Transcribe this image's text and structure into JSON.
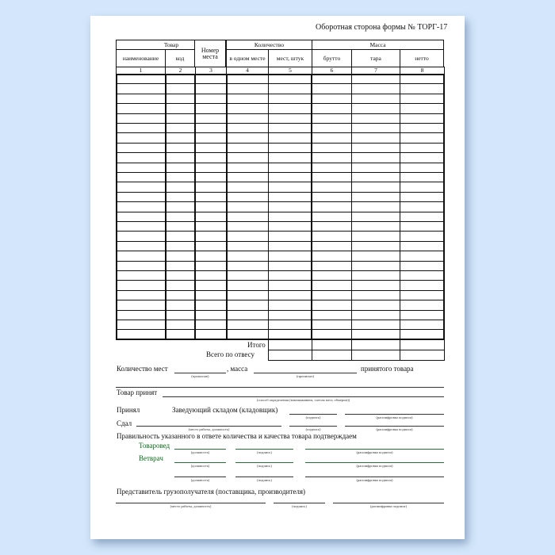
{
  "title": "Оборотная сторона формы № ТОРГ-17",
  "table": {
    "group_headers": {
      "goods": "Товар",
      "place_number": "Номер места",
      "quantity": "Количество",
      "mass": "Масса"
    },
    "sub_headers": {
      "name": "наименование",
      "code": "код",
      "per_place": "в одном месте",
      "places_pieces": "мест, штук",
      "gross": "брутто",
      "tare": "тара",
      "net": "нетто"
    },
    "column_numbers": [
      "1",
      "2",
      "3",
      "4",
      "5",
      "6",
      "7",
      "8"
    ],
    "total_label": "Итого",
    "total_weight_label": "Всего по отвесу"
  },
  "form": {
    "places_count_label": "Количество мест",
    "mass_label": ", масса",
    "accepted_goods_label": "принятого товара",
    "in_words": "(прописью)",
    "goods_accepted_label": "Товар принят",
    "method_caption": "(способ определения (взвешиванием, счетом мест, обмером))",
    "received_label": "Принял",
    "warehouse_manager": "Заведующий складом (кладовщик)",
    "signature": "(подпись)",
    "signature_decoding": "(расшифровка подписи)",
    "handed_label": "Сдал",
    "workplace_position": "(место работы, должность)",
    "confirm_text": "Правильность указанного в ответе количества и качества товара подтверждаем",
    "merchandiser": "Товаровед",
    "vet": "Ветврач",
    "position": "(должность)",
    "consignee_rep": "Представитель грузополучателя (поставщика, производителя)"
  }
}
